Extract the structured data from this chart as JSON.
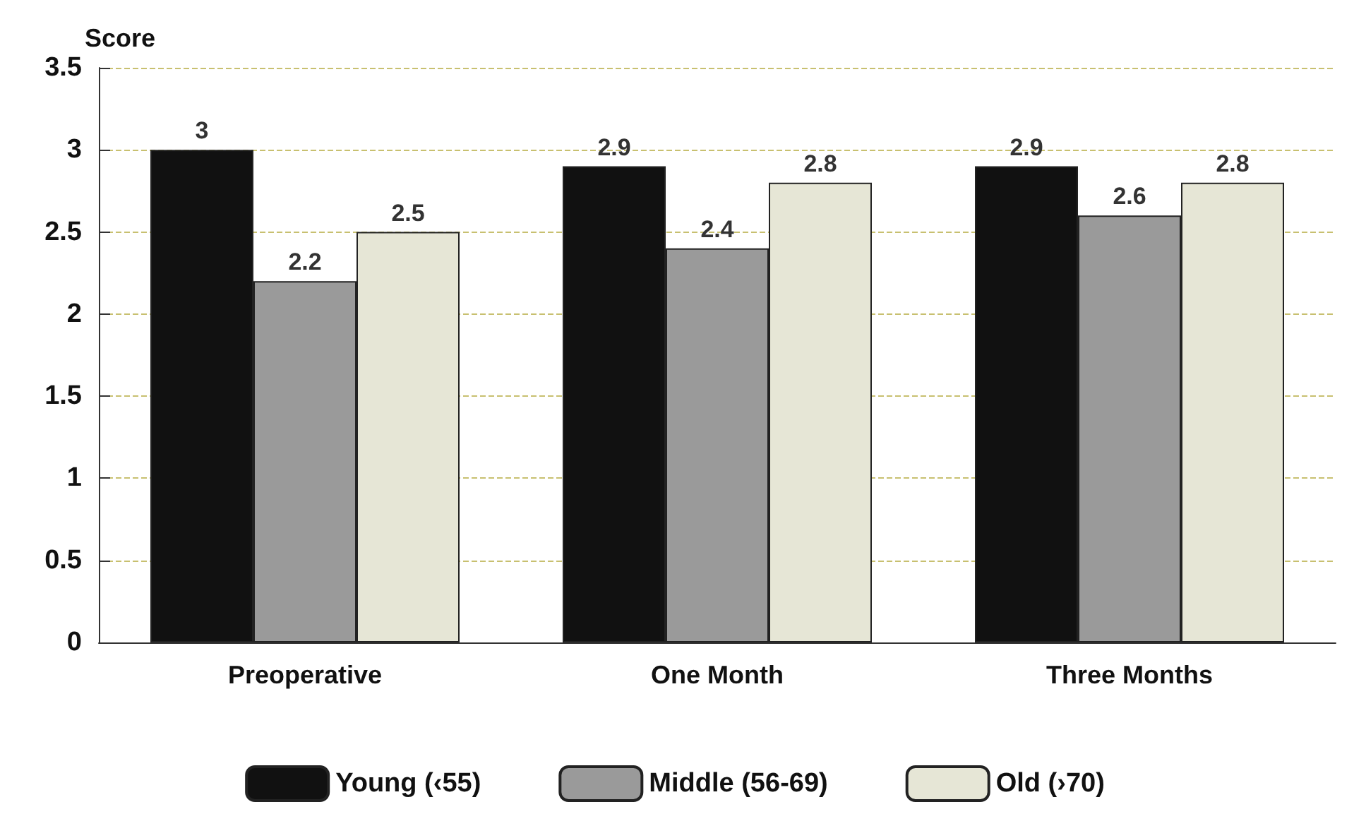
{
  "chart_data": {
    "type": "bar",
    "ylabel": "Score",
    "categories": [
      "Preoperative",
      "One Month",
      "Three Months"
    ],
    "series": [
      {
        "name": "Young (‹55)",
        "color": "#111111",
        "values": [
          3,
          2.9,
          2.9
        ]
      },
      {
        "name": "Middle (56-69)",
        "color": "#9a9a9a",
        "values": [
          2.2,
          2.4,
          2.6
        ]
      },
      {
        "name": "Old (›70)",
        "color": "#e6e6d6",
        "values": [
          2.5,
          2.8,
          2.8
        ]
      }
    ],
    "ylim": [
      0,
      3.5
    ],
    "yticks": [
      0,
      0.5,
      1,
      1.5,
      2,
      2.5,
      3,
      3.5
    ],
    "grid": "y",
    "legend": "bottom",
    "data_labels": true
  }
}
